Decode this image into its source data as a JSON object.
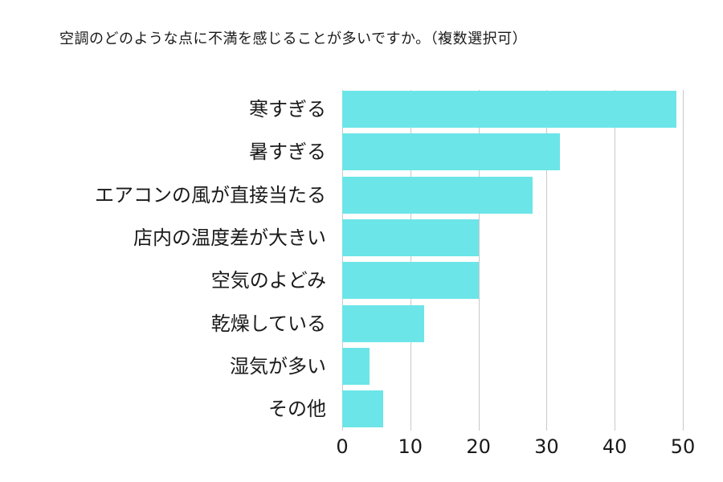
{
  "title": "空調のどのような点に不満を感じることが多いですか。（複数選択可）",
  "chart_data": {
    "type": "bar",
    "orientation": "horizontal",
    "title": "空調のどのような点に不満を感じることが多いですか。（複数選択可）",
    "categories": [
      "寒すぎる",
      "暑すぎる",
      "エアコンの風が直接当たる",
      "店内の温度差が大きい",
      "空気のよどみ",
      "乾燥している",
      "湿気が多い",
      "その他"
    ],
    "values": [
      49,
      32,
      28,
      20,
      20,
      12,
      4,
      6
    ],
    "xlabel": "",
    "ylabel": "",
    "xlim": [
      0,
      50
    ],
    "xticks": [
      "0",
      "10",
      "20",
      "30",
      "40",
      "50"
    ],
    "grid": true,
    "color": "#6ce5e8"
  }
}
